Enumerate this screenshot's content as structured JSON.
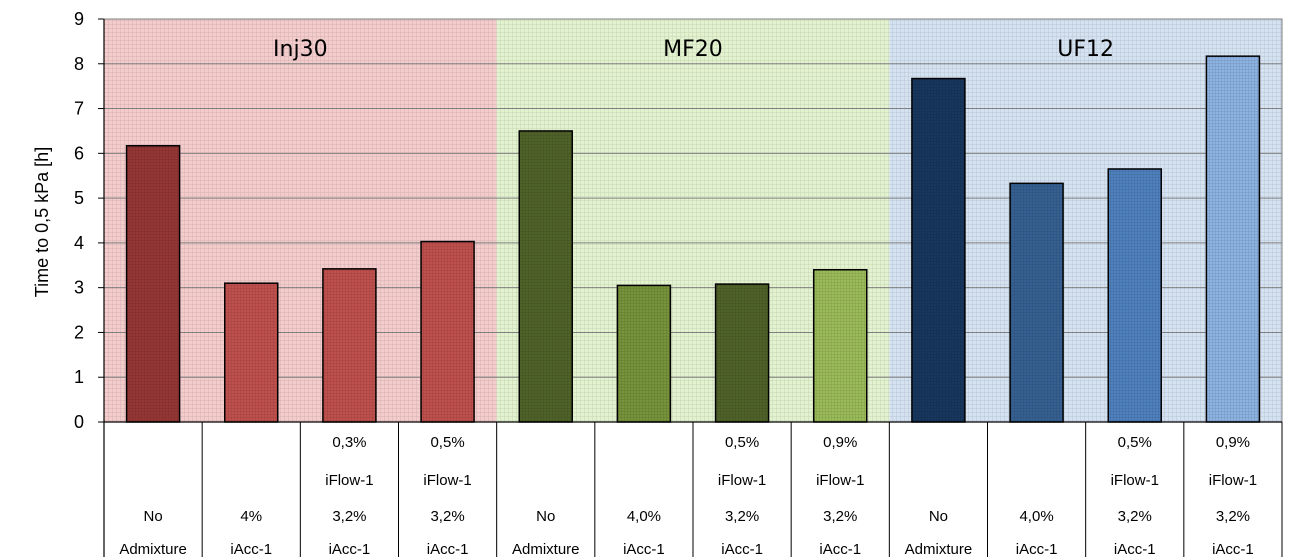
{
  "chart_data": {
    "type": "bar",
    "ylabel": "Time to 0,5 kPa [h]",
    "ylim": [
      0,
      9
    ],
    "yticks": [
      "0",
      "1",
      "2",
      "3",
      "4",
      "5",
      "6",
      "7",
      "8",
      "9"
    ],
    "grid": true,
    "groups": [
      {
        "name": "Inj30",
        "bg_color": "#f4cccc",
        "bars": [
          {
            "label_lines": [
              "",
              "",
              "No",
              "Admixture"
            ],
            "value": 6.17,
            "color": "#953735"
          },
          {
            "label_lines": [
              "",
              "",
              "4%",
              "iAcc-1"
            ],
            "value": 3.1,
            "color": "#c0504d"
          },
          {
            "label_lines": [
              "0,3%",
              "iFlow-1",
              "3,2%",
              "iAcc-1"
            ],
            "value": 3.42,
            "color": "#c0504d"
          },
          {
            "label_lines": [
              "0,5%",
              "iFlow-1",
              "3,2%",
              "iAcc-1"
            ],
            "value": 4.03,
            "color": "#c0504d"
          }
        ]
      },
      {
        "name": "MF20",
        "bg_color": "#e3f3cf",
        "bars": [
          {
            "label_lines": [
              "",
              "",
              "No",
              "Admixture"
            ],
            "value": 6.5,
            "color": "#4f6228"
          },
          {
            "label_lines": [
              "",
              "",
              "4,0%",
              "iAcc-1"
            ],
            "value": 3.05,
            "color": "#77933c"
          },
          {
            "label_lines": [
              "0,5%",
              "iFlow-1",
              "3,2%",
              "iAcc-1"
            ],
            "value": 3.08,
            "color": "#4f6228"
          },
          {
            "label_lines": [
              "0,9%",
              "iFlow-1",
              "3,2%",
              "iAcc-1"
            ],
            "value": 3.4,
            "color": "#9bbb59"
          }
        ]
      },
      {
        "name": "UF12",
        "bg_color": "#d5e2f2",
        "bars": [
          {
            "label_lines": [
              "",
              "",
              "No",
              "Admixture"
            ],
            "value": 7.67,
            "color": "#17375e"
          },
          {
            "label_lines": [
              "",
              "",
              "4,0%",
              "iAcc-1"
            ],
            "value": 5.33,
            "color": "#366092"
          },
          {
            "label_lines": [
              "0,5%",
              "iFlow-1",
              "3,2%",
              "iAcc-1"
            ],
            "value": 5.65,
            "color": "#4f81bd"
          },
          {
            "label_lines": [
              "0,9%",
              "iFlow-1",
              "3,2%",
              "iAcc-1"
            ],
            "value": 8.17,
            "color": "#8db3e2"
          }
        ]
      }
    ]
  }
}
